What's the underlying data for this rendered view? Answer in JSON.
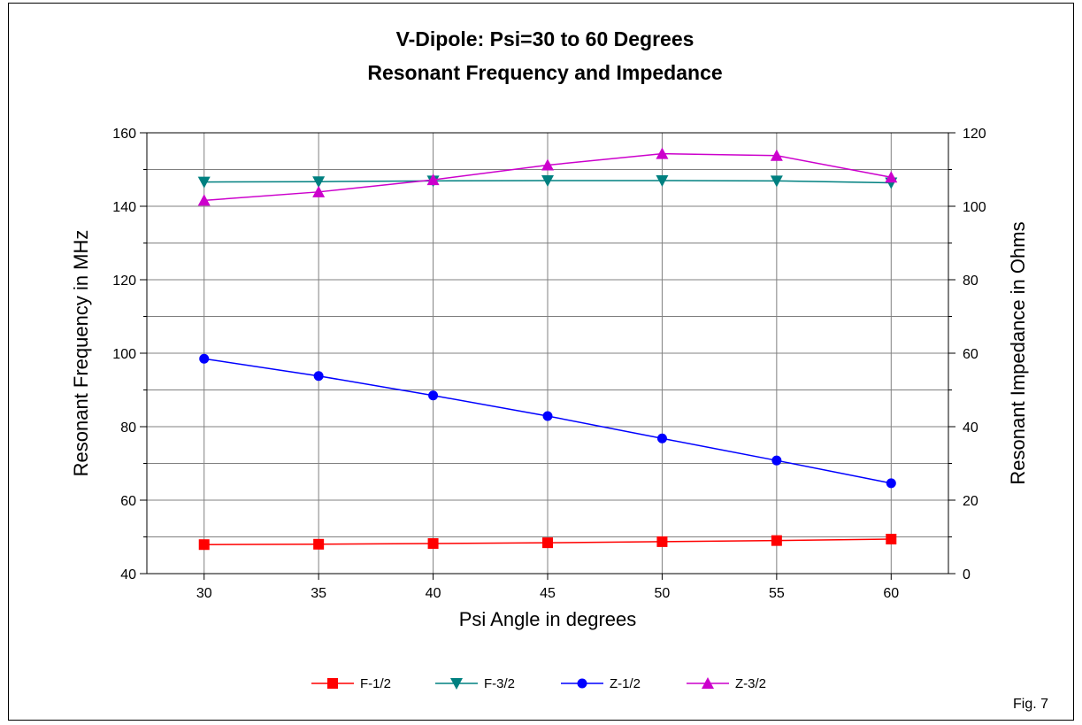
{
  "chart_data": {
    "type": "line",
    "title_line1": "V-Dipole: Psi=30 to 60 Degrees",
    "title_line2": "Resonant Frequency and Impedance",
    "xlabel": "Psi Angle in degrees",
    "ylabel_left": "Resonant Frequency in MHz",
    "ylabel_right": "Resonant Impedance in Ohms",
    "x": [
      30,
      35,
      40,
      45,
      50,
      55,
      60
    ],
    "xlim": [
      27.5,
      62.5
    ],
    "ylim_left": [
      40,
      160
    ],
    "ylim_right": [
      0,
      120
    ],
    "x_ticks": [
      "30",
      "35",
      "40",
      "45",
      "50",
      "55",
      "60"
    ],
    "y_ticks_left": [
      "40",
      "60",
      "80",
      "100",
      "120",
      "140",
      "160"
    ],
    "y_ticks_right": [
      "0",
      "20",
      "40",
      "60",
      "80",
      "100",
      "120"
    ],
    "grid": true,
    "legend_position": "bottom",
    "series": [
      {
        "name": "F-1/2",
        "axis": "left",
        "color": "#ff0000",
        "marker": "square",
        "values": [
          47.9,
          48.0,
          48.2,
          48.4,
          48.7,
          49.0,
          49.4
        ]
      },
      {
        "name": "F-3/2",
        "axis": "left",
        "color": "#008080",
        "marker": "triangle-down",
        "values": [
          146.6,
          146.7,
          146.9,
          147.0,
          147.0,
          146.9,
          146.4
        ]
      },
      {
        "name": "Z-1/2",
        "axis": "right",
        "color": "#0000ff",
        "marker": "circle",
        "values": [
          58.5,
          53.8,
          48.5,
          42.9,
          36.8,
          30.8,
          24.6
        ]
      },
      {
        "name": "Z-3/2",
        "axis": "right",
        "color": "#cc00cc",
        "marker": "triangle-up",
        "values": [
          101.6,
          103.9,
          107.2,
          111.2,
          114.3,
          113.8,
          107.9
        ]
      }
    ],
    "figure_label": "Fig. 7"
  }
}
